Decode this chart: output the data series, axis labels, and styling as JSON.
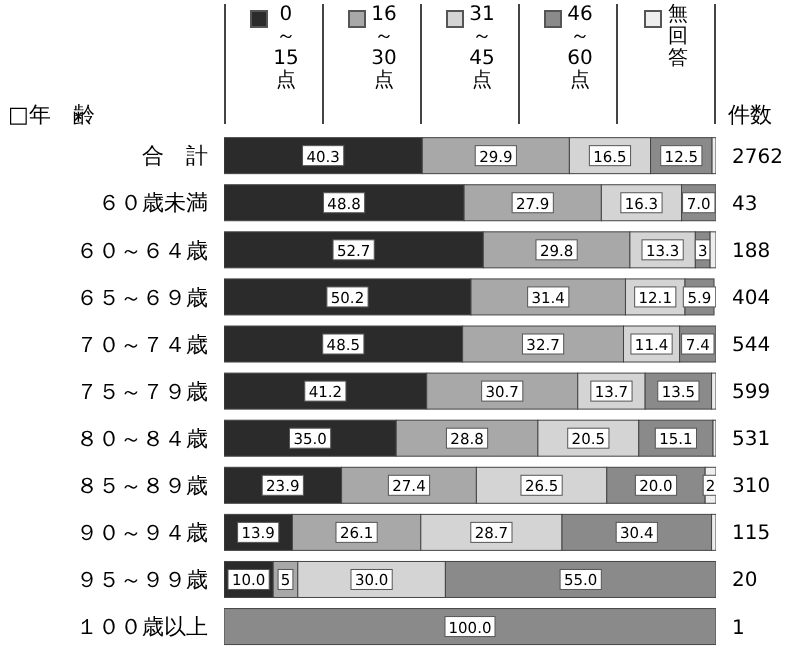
{
  "chart_data": {
    "type": "bar",
    "orientation": "horizontal",
    "stacked": true,
    "ylabel": "□年　齢",
    "y2label": "件数",
    "categories": [
      "合　計",
      "６０歳未満",
      "６０～６４歳",
      "６５～６９歳",
      "７０～７４歳",
      "７５～７９歳",
      "８０～８４歳",
      "８５～８９歳",
      "９０～９４歳",
      "９５～９９歳",
      "１００歳以上"
    ],
    "y2_categories": [
      "2762",
      "43",
      "188",
      "404",
      "544",
      "599",
      "531",
      "310",
      "115",
      "20",
      "1"
    ],
    "xlim": [
      0,
      100
    ],
    "tick_labels": "y",
    "legend": "top",
    "series": [
      {
        "name": "0～15点",
        "color": "#2b2b2b",
        "values": [
          40.3,
          48.8,
          52.7,
          50.2,
          48.5,
          41.2,
          35.0,
          23.9,
          13.9,
          10.0,
          0
        ],
        "value_labels": [
          "40.3",
          "48.8",
          "52.7",
          "50.2",
          "48.5",
          "41.2",
          "35.0",
          "23.9",
          "13.9",
          "10.0",
          null
        ]
      },
      {
        "name": "16～30点",
        "color": "#a8a8a8",
        "values": [
          29.9,
          27.9,
          29.8,
          31.4,
          32.7,
          30.7,
          28.8,
          27.4,
          26.1,
          5,
          0
        ],
        "value_labels": [
          "29.9",
          "27.9",
          "29.8",
          "31.4",
          "32.7",
          "30.7",
          "28.8",
          "27.4",
          "26.1",
          "5",
          null
        ]
      },
      {
        "name": "31～45点",
        "color": "#d4d4d4",
        "values": [
          16.5,
          16.3,
          13.3,
          12.1,
          11.4,
          13.7,
          20.5,
          26.5,
          28.7,
          30.0,
          0
        ],
        "value_labels": [
          "16.5",
          "16.3",
          "13.3",
          "12.1",
          "11.4",
          "13.7",
          "20.5",
          "26.5",
          "28.7",
          "30.0",
          null
        ]
      },
      {
        "name": "46～60点",
        "color": "#8a8a8a",
        "values": [
          12.5,
          7.0,
          3,
          5.9,
          7.4,
          13.5,
          15.1,
          20.0,
          30.4,
          55.0,
          100.0
        ],
        "value_labels": [
          "12.5",
          "7.0",
          "3",
          "5.9",
          "7.4",
          "13.5",
          "15.1",
          "20.0",
          "30.4",
          "55.0",
          "100.0"
        ]
      },
      {
        "name": "無回答",
        "color": "#eeeeee",
        "values": [
          0.8,
          0,
          1.2,
          null,
          0,
          0.9,
          0.6,
          2.2,
          0.9,
          0,
          0
        ],
        "value_labels": [
          null,
          null,
          null,
          null,
          null,
          null,
          null,
          "2",
          null,
          null,
          null
        ]
      }
    ]
  }
}
